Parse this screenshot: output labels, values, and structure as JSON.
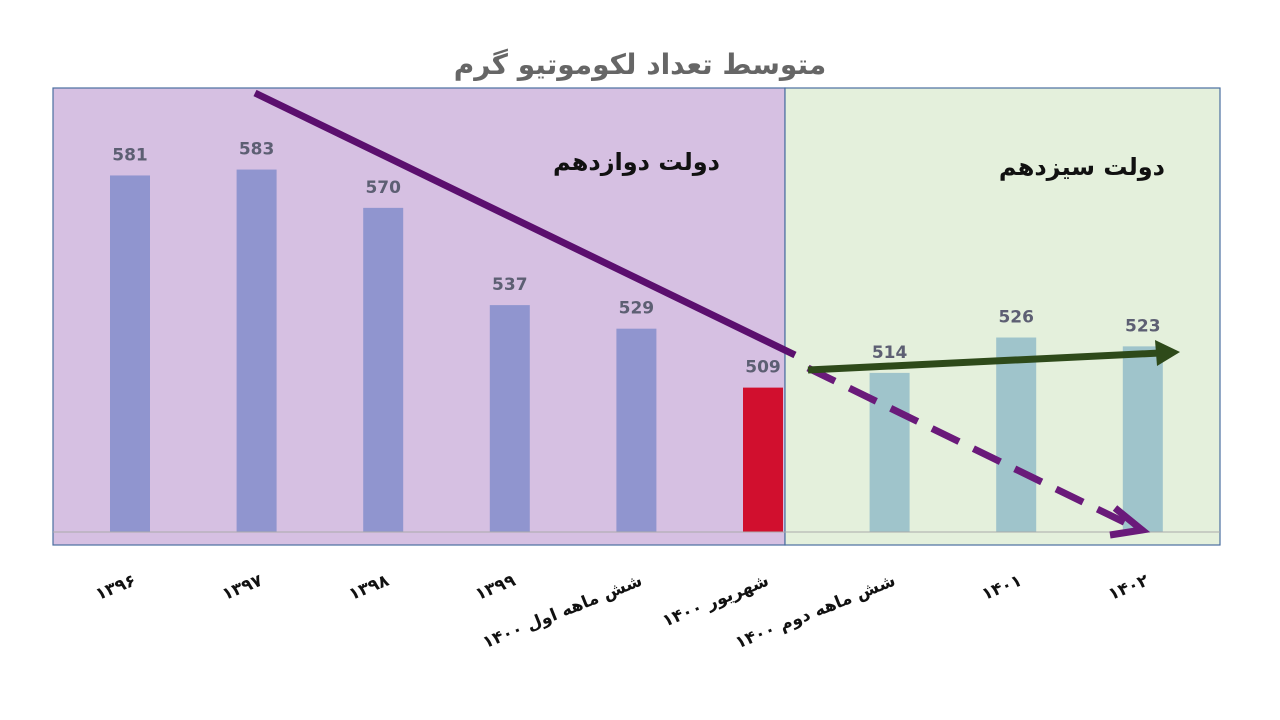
{
  "chart_data": {
    "type": "bar",
    "title": "متوسط تعداد لکوموتیو گرم",
    "categories": [
      "۱۳۹۶",
      "۱۳۹۷",
      "۱۳۹۸",
      "۱۳۹۹",
      "شش ماهه اول ۱۴۰۰",
      "شهریور ۱۴۰۰",
      "شش ماهه دوم ۱۴۰۰",
      "۱۴۰۱",
      "۱۴۰۲"
    ],
    "values": [
      581,
      583,
      570,
      537,
      529,
      509,
      514,
      526,
      523
    ],
    "colors": [
      "#9095cf",
      "#9095cf",
      "#9095cf",
      "#9095cf",
      "#9095cf",
      "#d10f2e",
      "#9fc4cb",
      "#9fc4cb",
      "#9fc4cb"
    ],
    "ylim": [
      460,
      610
    ],
    "regions": [
      {
        "label": "دولت دوازدهم",
        "color": "#d6c0e2"
      },
      {
        "label": "دولت سیزدهم",
        "color": "#e4f0dc"
      }
    ]
  }
}
